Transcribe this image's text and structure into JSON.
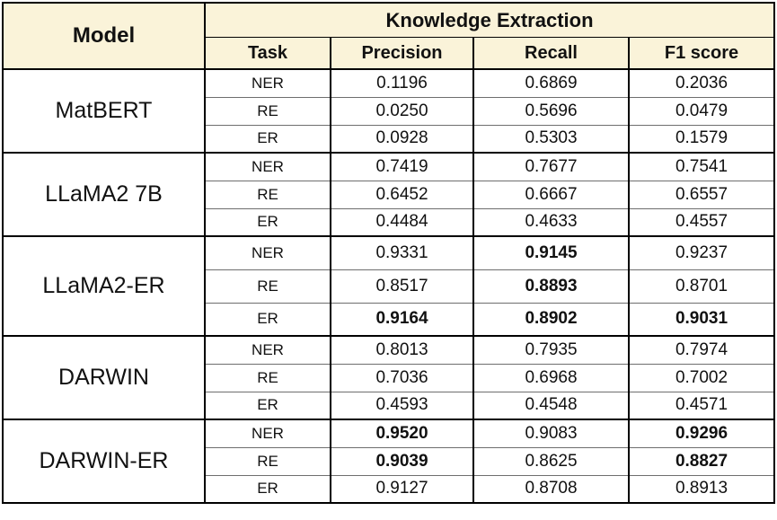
{
  "header": {
    "model": "Model",
    "group": "Knowledge Extraction",
    "columns": [
      "Task",
      "Precision",
      "Recall",
      "F1 score"
    ]
  },
  "groups": [
    {
      "model": "MatBERT",
      "rows": [
        {
          "task": "NER",
          "values": [
            "0.1196",
            "0.6869",
            "0.2036"
          ],
          "bold": [
            false,
            false,
            false
          ]
        },
        {
          "task": "RE",
          "values": [
            "0.0250",
            "0.5696",
            "0.0479"
          ],
          "bold": [
            false,
            false,
            false
          ]
        },
        {
          "task": "ER",
          "values": [
            "0.0928",
            "0.5303",
            "0.1579"
          ],
          "bold": [
            false,
            false,
            false
          ]
        }
      ]
    },
    {
      "model": "LLaMA2 7B",
      "rows": [
        {
          "task": "NER",
          "values": [
            "0.7419",
            "0.7677",
            "0.7541"
          ],
          "bold": [
            false,
            false,
            false
          ]
        },
        {
          "task": "RE",
          "values": [
            "0.6452",
            "0.6667",
            "0.6557"
          ],
          "bold": [
            false,
            false,
            false
          ]
        },
        {
          "task": "ER",
          "values": [
            "0.4484",
            "0.4633",
            "0.4557"
          ],
          "bold": [
            false,
            false,
            false
          ]
        }
      ]
    },
    {
      "model": "LLaMA2-ER",
      "rows": [
        {
          "task": "NER",
          "values": [
            "0.9331",
            "0.9145",
            "0.9237"
          ],
          "bold": [
            false,
            true,
            false
          ]
        },
        {
          "task": "RE",
          "values": [
            "0.8517",
            "0.8893",
            "0.8701"
          ],
          "bold": [
            false,
            true,
            false
          ]
        },
        {
          "task": "ER",
          "values": [
            "0.9164",
            "0.8902",
            "0.9031"
          ],
          "bold": [
            true,
            true,
            true
          ]
        }
      ]
    },
    {
      "model": "DARWIN",
      "rows": [
        {
          "task": "NER",
          "values": [
            "0.8013",
            "0.7935",
            "0.7974"
          ],
          "bold": [
            false,
            false,
            false
          ]
        },
        {
          "task": "RE",
          "values": [
            "0.7036",
            "0.6968",
            "0.7002"
          ],
          "bold": [
            false,
            false,
            false
          ]
        },
        {
          "task": "ER",
          "values": [
            "0.4593",
            "0.4548",
            "0.4571"
          ],
          "bold": [
            false,
            false,
            false
          ]
        }
      ]
    },
    {
      "model": "DARWIN-ER",
      "rows": [
        {
          "task": "NER",
          "values": [
            "0.9520",
            "0.9083",
            "0.9296"
          ],
          "bold": [
            true,
            false,
            true
          ]
        },
        {
          "task": "RE",
          "values": [
            "0.9039",
            "0.8625",
            "0.8827"
          ],
          "bold": [
            true,
            false,
            true
          ]
        },
        {
          "task": "ER",
          "values": [
            "0.9127",
            "0.8708",
            "0.8913"
          ],
          "bold": [
            false,
            false,
            false
          ]
        }
      ]
    }
  ],
  "colors": {
    "header_bg": "#FAF3D9",
    "outer_line": "#000000",
    "inner_line": "#6e6e6e",
    "text": "#111111"
  }
}
